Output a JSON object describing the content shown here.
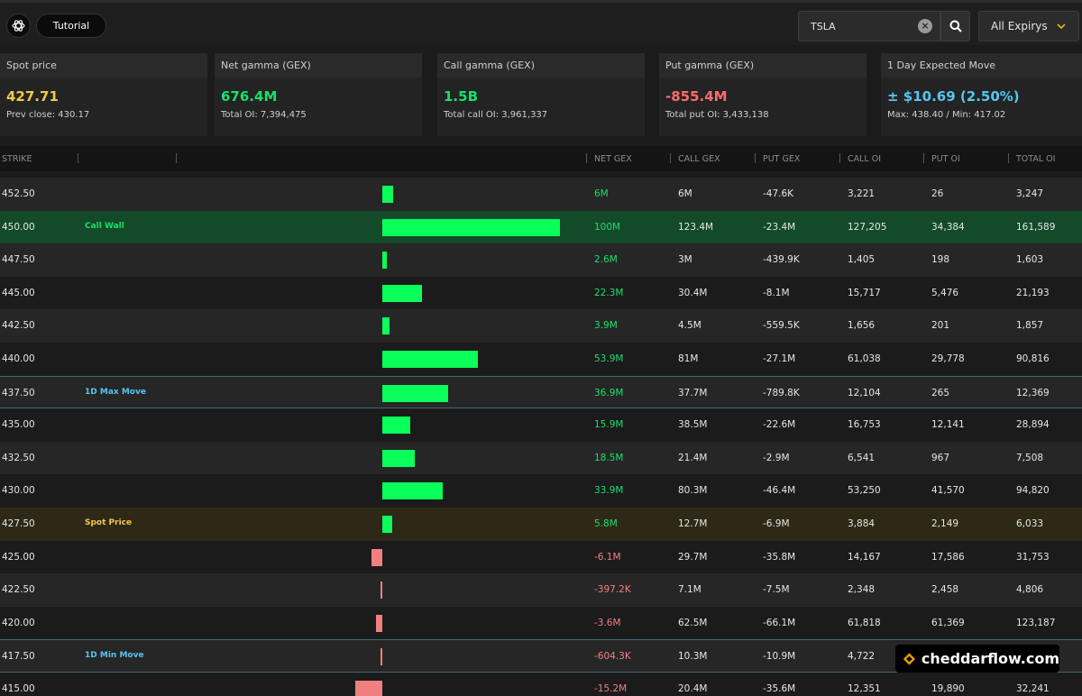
{
  "header": {
    "tutorial_label": "Tutorial",
    "search_value": "TSLA",
    "expiry_label": "All Expirys",
    "icons": [
      "openai-logo-icon",
      "clear-icon",
      "search-icon",
      "chevron-down-icon"
    ]
  },
  "cards": [
    {
      "title": "Spot price",
      "value": "427.71",
      "sub": "Prev close: 430.17",
      "color": "#f2c94c"
    },
    {
      "title": "Net gamma (GEX)",
      "value": "676.4M",
      "sub": "Total OI: 7,394,475",
      "color": "#19e06a"
    },
    {
      "title": "Call gamma (GEX)",
      "value": "1.5B",
      "sub": "Total call OI: 3,961,337",
      "color": "#19e06a"
    },
    {
      "title": "Put gamma (GEX)",
      "value": "-855.4M",
      "sub": "Total put OI: 3,433,138",
      "color": "#ff6b6b"
    },
    {
      "title": "1 Day Expected Move",
      "value": "± $10.69 (2.50%)",
      "sub": "Max: 438.40 / Min: 417.02",
      "color": "#56c5f0"
    }
  ],
  "table": {
    "headers": [
      "STRIKE",
      "NET GEX",
      "CALL GEX",
      "PUT GEX",
      "CALL OI",
      "PUT OI",
      "TOTAL OI"
    ],
    "rows": [
      {
        "strike": "452.50",
        "label": "",
        "net_gex": "6M",
        "net_value": 6,
        "call_gex": "6M",
        "put_gex": "-47.6K",
        "call_oi": "3,221",
        "put_oi": "26",
        "total_oi": "3,247"
      },
      {
        "strike": "450.00",
        "label": "Call Wall",
        "net_gex": "100M",
        "net_value": 100,
        "call_gex": "123.4M",
        "put_gex": "-23.4M",
        "call_oi": "127,205",
        "put_oi": "34,384",
        "total_oi": "161,589"
      },
      {
        "strike": "447.50",
        "label": "",
        "net_gex": "2.6M",
        "net_value": 2.6,
        "call_gex": "3M",
        "put_gex": "-439.9K",
        "call_oi": "1,405",
        "put_oi": "198",
        "total_oi": "1,603"
      },
      {
        "strike": "445.00",
        "label": "",
        "net_gex": "22.3M",
        "net_value": 22.3,
        "call_gex": "30.4M",
        "put_gex": "-8.1M",
        "call_oi": "15,717",
        "put_oi": "5,476",
        "total_oi": "21,193"
      },
      {
        "strike": "442.50",
        "label": "",
        "net_gex": "3.9M",
        "net_value": 3.9,
        "call_gex": "4.5M",
        "put_gex": "-559.5K",
        "call_oi": "1,656",
        "put_oi": "201",
        "total_oi": "1,857"
      },
      {
        "strike": "440.00",
        "label": "",
        "net_gex": "53.9M",
        "net_value": 53.9,
        "call_gex": "81M",
        "put_gex": "-27.1M",
        "call_oi": "61,038",
        "put_oi": "29,778",
        "total_oi": "90,816"
      },
      {
        "strike": "437.50",
        "label": "1D Max Move",
        "net_gex": "36.9M",
        "net_value": 36.9,
        "call_gex": "37.7M",
        "put_gex": "-789.8K",
        "call_oi": "12,104",
        "put_oi": "265",
        "total_oi": "12,369"
      },
      {
        "strike": "435.00",
        "label": "",
        "net_gex": "15.9M",
        "net_value": 15.9,
        "call_gex": "38.5M",
        "put_gex": "-22.6M",
        "call_oi": "16,753",
        "put_oi": "12,141",
        "total_oi": "28,894"
      },
      {
        "strike": "432.50",
        "label": "",
        "net_gex": "18.5M",
        "net_value": 18.5,
        "call_gex": "21.4M",
        "put_gex": "-2.9M",
        "call_oi": "6,541",
        "put_oi": "967",
        "total_oi": "7,508"
      },
      {
        "strike": "430.00",
        "label": "",
        "net_gex": "33.9M",
        "net_value": 33.9,
        "call_gex": "80.3M",
        "put_gex": "-46.4M",
        "call_oi": "53,250",
        "put_oi": "41,570",
        "total_oi": "94,820"
      },
      {
        "strike": "427.50",
        "label": "Spot Price",
        "net_gex": "5.8M",
        "net_value": 5.8,
        "call_gex": "12.7M",
        "put_gex": "-6.9M",
        "call_oi": "3,884",
        "put_oi": "2,149",
        "total_oi": "6,033"
      },
      {
        "strike": "425.00",
        "label": "",
        "net_gex": "-6.1M",
        "net_value": -6.1,
        "call_gex": "29.7M",
        "put_gex": "-35.8M",
        "call_oi": "14,167",
        "put_oi": "17,586",
        "total_oi": "31,753"
      },
      {
        "strike": "422.50",
        "label": "",
        "net_gex": "-397.2K",
        "net_value": -0.3972,
        "call_gex": "7.1M",
        "put_gex": "-7.5M",
        "call_oi": "2,348",
        "put_oi": "2,458",
        "total_oi": "4,806"
      },
      {
        "strike": "420.00",
        "label": "",
        "net_gex": "-3.6M",
        "net_value": -3.6,
        "call_gex": "62.5M",
        "put_gex": "-66.1M",
        "call_oi": "61,818",
        "put_oi": "61,369",
        "total_oi": "123,187"
      },
      {
        "strike": "417.50",
        "label": "1D Min Move",
        "net_gex": "-604.3K",
        "net_value": -0.6043,
        "call_gex": "10.3M",
        "put_gex": "-10.9M",
        "call_oi": "4,722",
        "put_oi": "",
        "total_oi": ""
      },
      {
        "strike": "415.00",
        "label": "",
        "net_gex": "-15.2M",
        "net_value": -15.2,
        "call_gex": "20.4M",
        "put_gex": "-35.6M",
        "call_oi": "12,351",
        "put_oi": "19,890",
        "total_oi": "32,241"
      }
    ]
  },
  "watermark": "cheddarflow.com",
  "colors": {
    "positive": "#0aff5a",
    "negative": "#f08080",
    "call_wall_row": "#134a2a",
    "spot_row": "#2e2817",
    "label_green": "#19e06a",
    "label_cyan": "#56c5f0",
    "label_yellow": "#f2c94c"
  }
}
